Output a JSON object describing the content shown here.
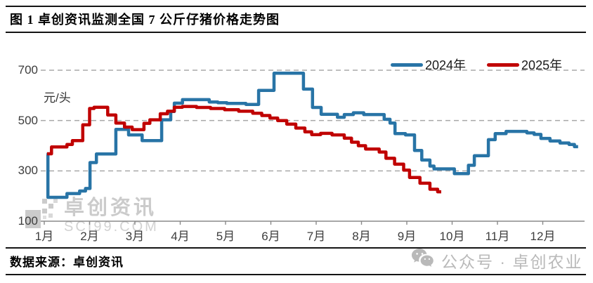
{
  "header": {
    "title": "图 1 卓创资讯监测全国 7 公斤仔猪价格走势图"
  },
  "legend": [
    {
      "label": "2024年",
      "color": "#2874A6"
    },
    {
      "label": "2025年",
      "color": "#C00000"
    }
  ],
  "footer": {
    "source": "数据来源：卓创资讯"
  },
  "watermarks": {
    "chart": {
      "line1": "卓创资讯",
      "line2": "SCI99.COM",
      "logo": "sci99-pixel-logo",
      "color": "#cbcbcb"
    },
    "footer": {
      "icon": "wechat-icon",
      "text": "公众号 · 卓创农业",
      "color": "#b9b9b9"
    }
  },
  "chart_data": {
    "type": "line",
    "step": true,
    "title": "全国7公斤仔猪价格走势",
    "unit_label": "元/头",
    "ylim": [
      100,
      700
    ],
    "y_ticks": [
      100,
      300,
      500,
      700
    ],
    "y_gridlines": [
      300,
      500,
      700
    ],
    "y_axis_line": 100,
    "grid": "dashed-horizontal",
    "legend_position": "top-right",
    "x_tick_labels": [
      "1月",
      "2月",
      "3月",
      "4月",
      "5月",
      "6月",
      "7月",
      "8月",
      "9月",
      "10月",
      "11月",
      "12月"
    ],
    "x_unit": "month (1 = Jan 1, 13 = Dec 31)",
    "xlim": [
      1,
      13
    ],
    "series": [
      {
        "name": "2024年",
        "color": "#2874A6",
        "end_x": 12.78,
        "points": [
          [
            1.05,
            365
          ],
          [
            1.08,
            195
          ],
          [
            1.5,
            210
          ],
          [
            1.78,
            220
          ],
          [
            1.91,
            230
          ],
          [
            2.01,
            333
          ],
          [
            2.15,
            367
          ],
          [
            2.58,
            465
          ],
          [
            2.86,
            443
          ],
          [
            3.16,
            420
          ],
          [
            3.59,
            503
          ],
          [
            3.79,
            536
          ],
          [
            3.87,
            569
          ],
          [
            4.05,
            583
          ],
          [
            4.64,
            574
          ],
          [
            4.83,
            571
          ],
          [
            5.03,
            568
          ],
          [
            5.45,
            564
          ],
          [
            5.73,
            620
          ],
          [
            6.07,
            688
          ],
          [
            6.72,
            625
          ],
          [
            6.92,
            552
          ],
          [
            7.11,
            525
          ],
          [
            7.47,
            513
          ],
          [
            7.62,
            524
          ],
          [
            7.82,
            531
          ],
          [
            8.05,
            524
          ],
          [
            8.5,
            505
          ],
          [
            8.63,
            490
          ],
          [
            8.74,
            448
          ],
          [
            8.97,
            443
          ],
          [
            9.17,
            381
          ],
          [
            9.33,
            343
          ],
          [
            9.51,
            319
          ],
          [
            9.6,
            308
          ],
          [
            10.05,
            289
          ],
          [
            10.36,
            322
          ],
          [
            10.49,
            360
          ],
          [
            10.8,
            424
          ],
          [
            10.95,
            448
          ],
          [
            11.19,
            457
          ],
          [
            11.65,
            451
          ],
          [
            11.81,
            445
          ],
          [
            11.96,
            429
          ],
          [
            12.16,
            419
          ],
          [
            12.38,
            411
          ],
          [
            12.58,
            405
          ],
          [
            12.7,
            396
          ]
        ]
      },
      {
        "name": "2025年",
        "color": "#C00000",
        "end_x": 9.76,
        "points": [
          [
            1.06,
            368
          ],
          [
            1.16,
            395
          ],
          [
            1.5,
            405
          ],
          [
            1.62,
            420
          ],
          [
            1.85,
            483
          ],
          [
            2.0,
            548
          ],
          [
            2.1,
            553
          ],
          [
            2.4,
            522
          ],
          [
            2.58,
            490
          ],
          [
            2.77,
            474
          ],
          [
            2.94,
            464
          ],
          [
            3.2,
            489
          ],
          [
            3.33,
            503
          ],
          [
            3.56,
            527
          ],
          [
            3.72,
            537
          ],
          [
            3.87,
            553
          ],
          [
            4.05,
            556
          ],
          [
            4.36,
            552
          ],
          [
            4.67,
            548
          ],
          [
            4.98,
            543
          ],
          [
            5.29,
            537
          ],
          [
            5.6,
            529
          ],
          [
            5.8,
            520
          ],
          [
            5.98,
            510
          ],
          [
            6.15,
            500
          ],
          [
            6.35,
            486
          ],
          [
            6.55,
            470
          ],
          [
            6.75,
            455
          ],
          [
            6.9,
            444
          ],
          [
            7.1,
            449
          ],
          [
            7.35,
            443
          ],
          [
            7.62,
            430
          ],
          [
            7.78,
            414
          ],
          [
            7.93,
            400
          ],
          [
            8.09,
            387
          ],
          [
            8.39,
            375
          ],
          [
            8.54,
            350
          ],
          [
            8.73,
            327
          ],
          [
            8.93,
            303
          ],
          [
            9.06,
            274
          ],
          [
            9.29,
            251
          ],
          [
            9.51,
            227
          ],
          [
            9.68,
            217
          ]
        ]
      }
    ],
    "colors": {
      "grid": "#A8A8A8",
      "axis": "#8a8a8a",
      "tick_text": "#3d3d3d"
    }
  }
}
